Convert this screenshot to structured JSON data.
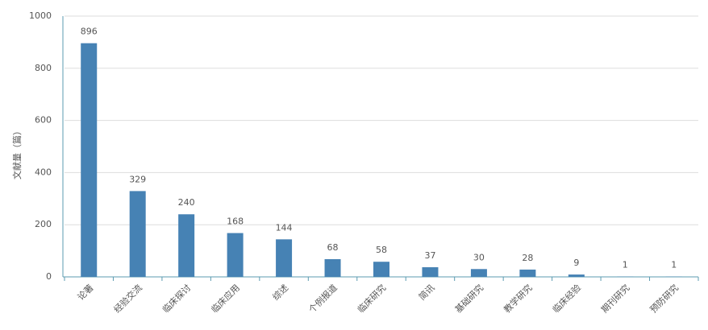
{
  "chart_data": {
    "type": "bar",
    "y_label": "文献量（篇）",
    "categories": [
      "论著",
      "经验交流",
      "临床探讨",
      "临床应用",
      "综述",
      "个例报道",
      "临床研究",
      "简讯",
      "基础研究",
      "教学研究",
      "临床经验",
      "期刊研究",
      "预防研究"
    ],
    "values": [
      896,
      329,
      240,
      168,
      144,
      68,
      58,
      37,
      30,
      28,
      9,
      1,
      1
    ],
    "color": "#4682b4",
    "ylim": [
      0,
      1000
    ],
    "yticks": [
      0,
      200,
      400,
      600,
      800,
      1000
    ],
    "grid": true
  }
}
